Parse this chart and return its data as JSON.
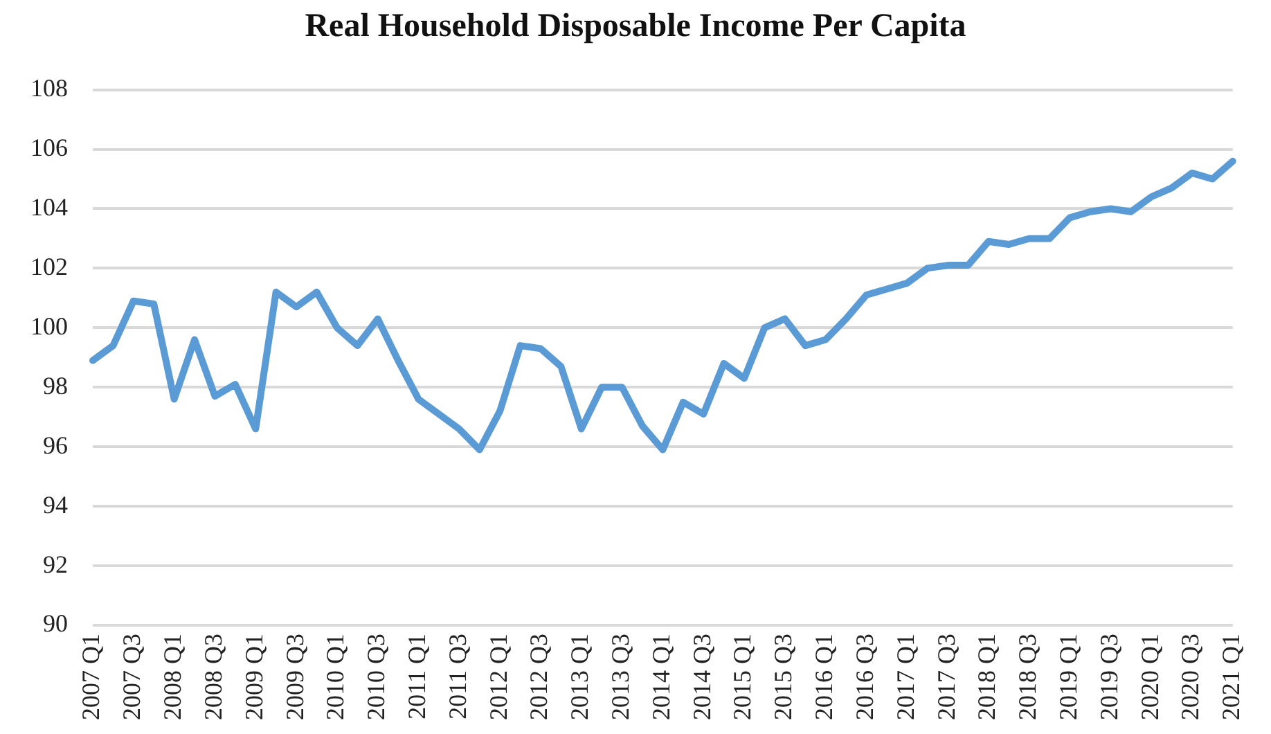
{
  "chart_data": {
    "type": "line",
    "title": "Real Household Disposable Income Per Capita",
    "categories": [
      "2007 Q1",
      null,
      "2007 Q3",
      null,
      "2008 Q1",
      null,
      "2008 Q3",
      null,
      "2009 Q1",
      null,
      "2009 Q3",
      null,
      "2010 Q1",
      null,
      "2010 Q3",
      null,
      "2011 Q1",
      null,
      "2011 Q3",
      null,
      "2012 Q1",
      null,
      "2012 Q3",
      null,
      "2013 Q1",
      null,
      "2013 Q3",
      null,
      "2014 Q1",
      null,
      "2014 Q3",
      null,
      "2015 Q1",
      null,
      "2015 Q3",
      null,
      "2016 Q1",
      null,
      "2016 Q3",
      null,
      "2017 Q1",
      null,
      "2017 Q3",
      null,
      "2018 Q1",
      null,
      "2018 Q3",
      null,
      "2019 Q1",
      null,
      "2019 Q3",
      null,
      "2020 Q1",
      null,
      "2020 Q3",
      null,
      "2021 Q1"
    ],
    "series": [
      {
        "color": "#5b9bd5",
        "values": [
          98.9,
          99.4,
          100.9,
          100.8,
          97.6,
          99.6,
          97.7,
          98.1,
          96.6,
          101.2,
          100.7,
          101.2,
          100.0,
          99.4,
          100.3,
          98.9,
          97.6,
          97.1,
          96.6,
          95.9,
          97.2,
          99.4,
          99.3,
          98.7,
          96.6,
          98.0,
          98.0,
          96.7,
          95.9,
          97.5,
          97.1,
          98.8,
          98.3,
          100.0,
          100.3,
          99.4,
          99.6,
          100.3,
          101.1,
          101.3,
          101.5,
          102.0,
          102.1,
          102.1,
          102.9,
          102.8,
          103.0,
          103.0,
          103.7,
          103.9,
          104.0,
          103.9,
          104.4,
          104.7,
          105.2,
          105.0,
          105.6
        ]
      }
    ],
    "ylim": [
      90,
      108
    ],
    "yticks": [
      90,
      92,
      94,
      96,
      98,
      100,
      102,
      104,
      106,
      108
    ],
    "grid": "y",
    "legend": false,
    "marker": "none",
    "line_style": "solid"
  }
}
